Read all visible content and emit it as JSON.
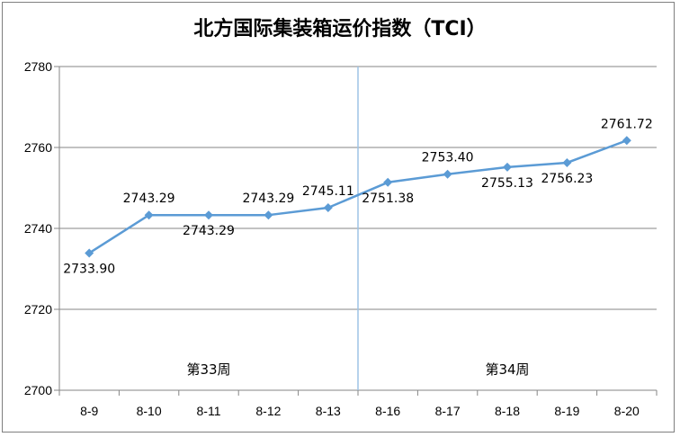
{
  "chart_data": {
    "type": "line",
    "title": "北方国际集装箱运价指数（TCI）",
    "categories": [
      "8-9",
      "8-10",
      "8-11",
      "8-12",
      "8-13",
      "8-16",
      "8-17",
      "8-18",
      "8-19",
      "8-20"
    ],
    "series": [
      {
        "values": [
          2733.9,
          2743.29,
          2743.29,
          2743.29,
          2745.11,
          2751.38,
          2753.4,
          2755.13,
          2756.23,
          2761.72
        ],
        "labels": [
          "2733.90",
          "2743.29",
          "2743.29",
          "2743.29",
          "2745.11",
          "2751.38",
          "2753.40",
          "2755.13",
          "2756.23",
          "2761.72"
        ],
        "label_positions": [
          "below",
          "above",
          "below",
          "above",
          "above",
          "below",
          "above",
          "below",
          "below",
          "above"
        ],
        "color": "#5b9bd5"
      }
    ],
    "ylim": [
      2700,
      2780
    ],
    "yticks": [
      "2700",
      "2720",
      "2740",
      "2760",
      "2780"
    ],
    "grid": "horizontal",
    "week_groups": [
      {
        "label": "第33周",
        "range": [
          "8-9",
          "8-13"
        ]
      },
      {
        "label": "第34周",
        "range": [
          "8-16",
          "8-20"
        ]
      }
    ],
    "colors": {
      "line": "#5b9bd5",
      "gridline": "#868686",
      "axis": "#868686",
      "divider": "#9dc3e6"
    }
  }
}
